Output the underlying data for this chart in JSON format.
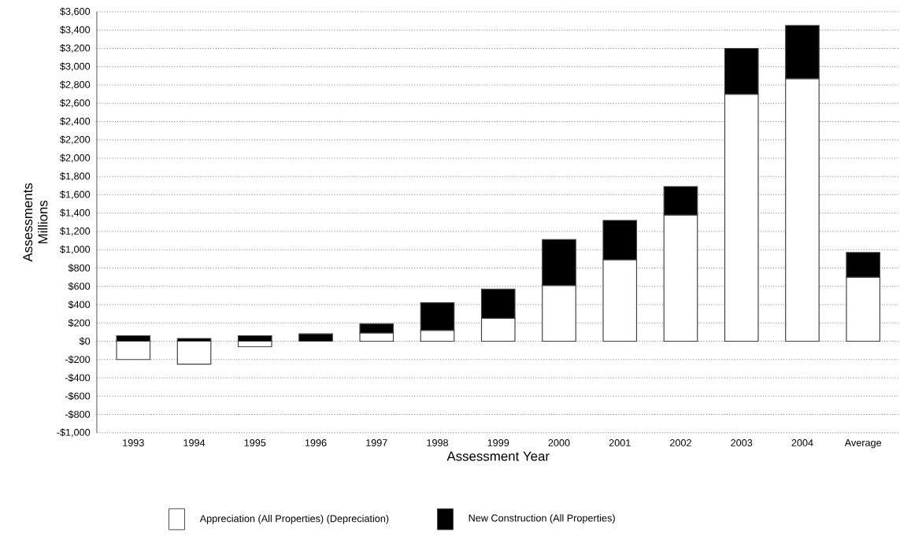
{
  "chart_data": {
    "type": "bar",
    "stacked": true,
    "xlabel": "Assessment Year",
    "ylabel": "Assessments Millions",
    "categories": [
      "1993",
      "1994",
      "1995",
      "1996",
      "1997",
      "1998",
      "1999",
      "2000",
      "2001",
      "2002",
      "2003",
      "2004",
      "Average"
    ],
    "series": [
      {
        "name": "Appreciation (All Properties) (Depreciation)",
        "color": "#ffffff",
        "values": [
          -200,
          -250,
          -60,
          0,
          90,
          120,
          250,
          610,
          890,
          1380,
          2700,
          2870,
          700
        ]
      },
      {
        "name": "New Construction (All Properties)",
        "color": "#000000",
        "values": [
          60,
          30,
          60,
          80,
          100,
          300,
          320,
          500,
          430,
          310,
          500,
          580,
          270
        ]
      }
    ],
    "ylim": [
      -1000,
      3600
    ],
    "yticks": [
      {
        "value": -1000,
        "label": "-$1,000"
      },
      {
        "value": -800,
        "label": "-$800"
      },
      {
        "value": -600,
        "label": "-$600"
      },
      {
        "value": -400,
        "label": "-$400"
      },
      {
        "value": -200,
        "label": "-$200"
      },
      {
        "value": 0,
        "label": "$0"
      },
      {
        "value": 200,
        "label": "$200"
      },
      {
        "value": 400,
        "label": "$400"
      },
      {
        "value": 600,
        "label": "$600"
      },
      {
        "value": 800,
        "label": "$800"
      },
      {
        "value": 1000,
        "label": "$1,000"
      },
      {
        "value": 1200,
        "label": "$1,200"
      },
      {
        "value": 1400,
        "label": "$1,400"
      },
      {
        "value": 1600,
        "label": "$1,600"
      },
      {
        "value": 1800,
        "label": "$1,800"
      },
      {
        "value": 2000,
        "label": "$2,000"
      },
      {
        "value": 2200,
        "label": "$2,200"
      },
      {
        "value": 2400,
        "label": "$2,400"
      },
      {
        "value": 2600,
        "label": "$2,600"
      },
      {
        "value": 2800,
        "label": "$2,800"
      },
      {
        "value": 3000,
        "label": "$3,000"
      },
      {
        "value": 3200,
        "label": "$3,200"
      },
      {
        "value": 3400,
        "label": "$3,400"
      },
      {
        "value": 3600,
        "label": "$3,600"
      }
    ],
    "grid": "y",
    "legend": "bottom"
  }
}
